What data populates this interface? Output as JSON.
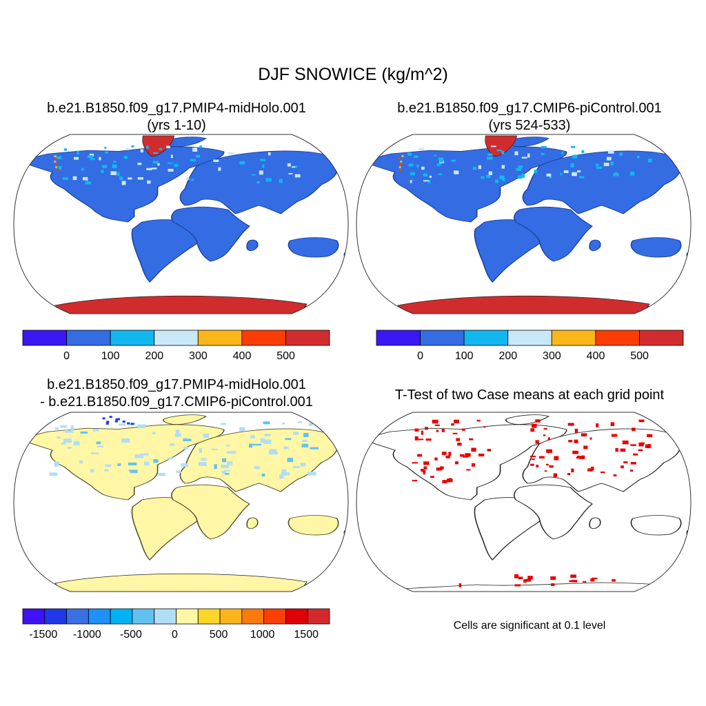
{
  "figure": {
    "title": "DJF SNOWICE (kg/m^2)",
    "colors": {
      "ocean": "#ffffff",
      "outline": "#000000",
      "abs_palette": [
        "#3a17f5",
        "#336ce3",
        "#12b7ef",
        "#c8e8f7",
        "#fbb719",
        "#fa3d04",
        "#d12c2d"
      ],
      "diff_palette": [
        "#3f12f3",
        "#1f39e9",
        "#3a70e3",
        "#1e90f8",
        "#00b2f4",
        "#62c2ef",
        "#b2def5",
        "#fff7a5",
        "#fbd527",
        "#fbb51a",
        "#fb7a0e",
        "#fb3f04",
        "#e00005",
        "#d3292d"
      ],
      "significant": "#e80000"
    }
  },
  "panels": [
    {
      "title_line1": "b.e21.B1850.f09_g17.PMIP4-midHolo.001",
      "title_line2": "(yrs 1-10)"
    },
    {
      "title_line1": "b.e21.B1850.f09_g17.CMIP6-piControl.001",
      "title_line2": "(yrs 524-533)"
    },
    {
      "title_line1": "b.e21.B1850.f09_g17.PMIP4-midHolo.001",
      "title_line2": "- b.e21.B1850.f09_g17.CMIP6-piControl.001"
    },
    {
      "title_line1": "T-Test of two Case means at each grid point",
      "note": "Cells are significant at 0.1 level"
    }
  ],
  "chart_data": [
    {
      "type": "heatmap",
      "projection": "robinson",
      "levels": [
        0,
        100,
        200,
        300,
        400,
        500
      ],
      "tick_labels": [
        "0",
        "100",
        "200",
        "300",
        "400",
        "500"
      ],
      "land_class": "0-100",
      "polar_class": ">500"
    },
    {
      "type": "heatmap",
      "projection": "robinson",
      "levels": [
        0,
        100,
        200,
        300,
        400,
        500
      ],
      "tick_labels": [
        "0",
        "100",
        "200",
        "300",
        "400",
        "500"
      ],
      "land_class": "0-100",
      "polar_class": ">500"
    },
    {
      "type": "heatmap",
      "projection": "robinson",
      "levels": [
        -1500,
        -1250,
        -1000,
        -750,
        -500,
        -250,
        0,
        250,
        500,
        750,
        1000,
        1250,
        1500
      ],
      "tick_labels": [
        "-1500",
        "-1000",
        "-500",
        "0",
        "500",
        "1000",
        "1500"
      ],
      "land_class": "0-250"
    },
    {
      "type": "heatmap",
      "projection": "robinson",
      "significance_level": 0.1
    }
  ]
}
